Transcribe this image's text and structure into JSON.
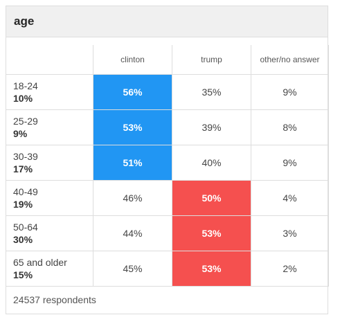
{
  "title": "age",
  "columns": [
    "clinton",
    "trump",
    "other/no answer"
  ],
  "colors": {
    "clinton": "#2196f3",
    "trump": "#f5504f"
  },
  "rows": [
    {
      "label": "18-24",
      "share": "10%",
      "values": [
        "56%",
        "35%",
        "9%"
      ],
      "winner": "clinton"
    },
    {
      "label": "25-29",
      "share": "9%",
      "values": [
        "53%",
        "39%",
        "8%"
      ],
      "winner": "clinton"
    },
    {
      "label": "30-39",
      "share": "17%",
      "values": [
        "51%",
        "40%",
        "9%"
      ],
      "winner": "clinton"
    },
    {
      "label": "40-49",
      "share": "19%",
      "values": [
        "46%",
        "50%",
        "4%"
      ],
      "winner": "trump"
    },
    {
      "label": "50-64",
      "share": "30%",
      "values": [
        "44%",
        "53%",
        "3%"
      ],
      "winner": "trump"
    },
    {
      "label": "65 and older",
      "share": "15%",
      "values": [
        "45%",
        "53%",
        "2%"
      ],
      "winner": "trump"
    }
  ],
  "footer": "24537 respondents"
}
